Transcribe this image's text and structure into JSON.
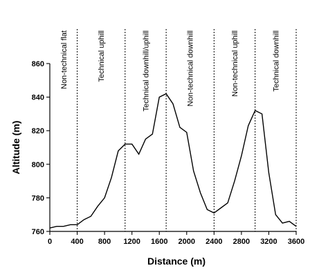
{
  "chart_data": {
    "type": "line",
    "title": "",
    "xlabel": "Distance (m)",
    "ylabel": "Altitude (m)",
    "xlim": [
      0,
      3600
    ],
    "ylim": [
      760,
      860
    ],
    "x_ticks": [
      0,
      400,
      800,
      1200,
      1600,
      2000,
      2400,
      2800,
      3200,
      3600
    ],
    "y_ticks": [
      760,
      780,
      800,
      820,
      840,
      860
    ],
    "grid": false,
    "series": [
      {
        "x": [
          0,
          100,
          200,
          300,
          400,
          500,
          600,
          700,
          800,
          900,
          1000,
          1100,
          1200,
          1300,
          1400,
          1500,
          1600,
          1700,
          1800,
          1900,
          2000,
          2100,
          2200,
          2300,
          2400,
          2500,
          2600,
          2700,
          2800,
          2900,
          3000,
          3100,
          3200,
          3300,
          3400,
          3500,
          3600
        ],
        "values": [
          762,
          763,
          763,
          764,
          764,
          767,
          769,
          775,
          780,
          792,
          808,
          812,
          812,
          806,
          815,
          818,
          840,
          842,
          836,
          822,
          819,
          796,
          783,
          773,
          771,
          774,
          777,
          790,
          805,
          823,
          832,
          830,
          795,
          770,
          765,
          766,
          763
        ]
      }
    ],
    "segments": [
      {
        "label": "Non-technical flat",
        "start": 0,
        "end": 400
      },
      {
        "label": "Technical uphill",
        "start": 400,
        "end": 1100
      },
      {
        "label": "Technical downhill/uphill",
        "start": 1100,
        "end": 1700
      },
      {
        "label": "Non-technical downhill",
        "start": 1700,
        "end": 2400
      },
      {
        "label": "Non-technical uphill",
        "start": 2400,
        "end": 3000
      },
      {
        "label": "Technical downhill",
        "start": 3000,
        "end": 3600
      }
    ],
    "boundaries": [
      400,
      1100,
      1700,
      2400,
      3000,
      3600
    ]
  }
}
